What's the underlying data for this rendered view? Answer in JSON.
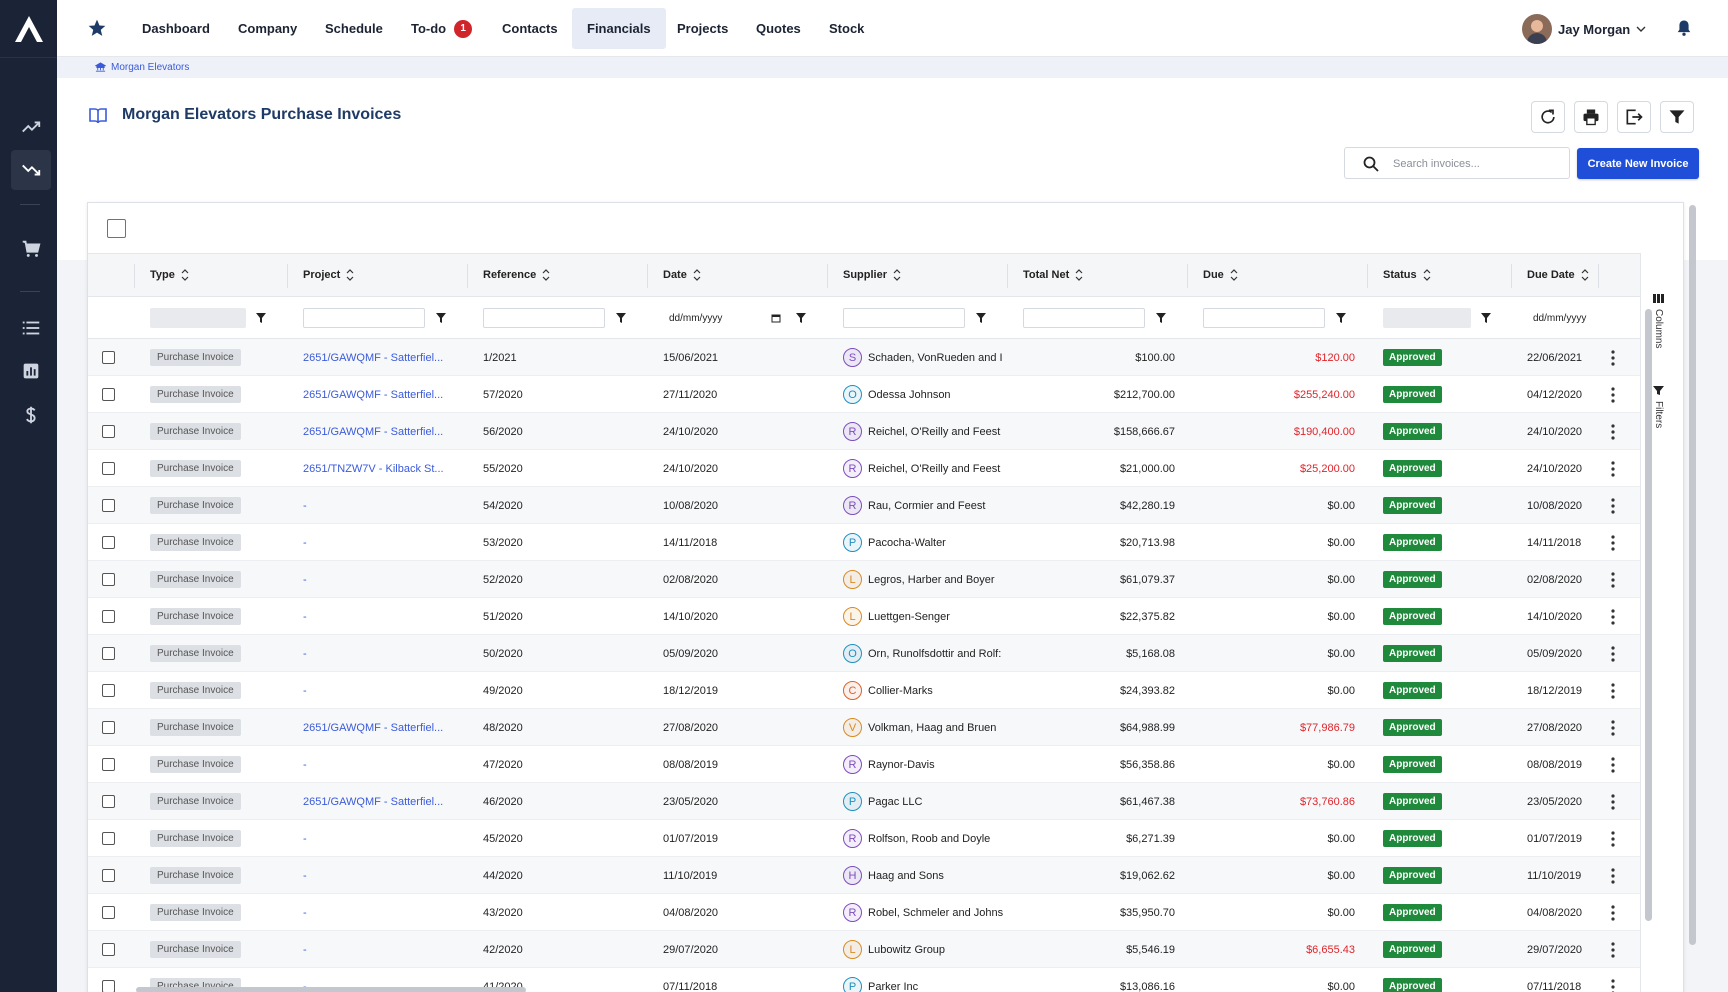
{
  "nav": {
    "items": [
      "Dashboard",
      "Company",
      "Schedule",
      "To-do",
      "Contacts",
      "Financials",
      "Projects",
      "Quotes",
      "Stock"
    ],
    "todo_badge": "1",
    "active": "Financials",
    "user_name": "Jay Morgan"
  },
  "breadcrumb": "Morgan Elevators",
  "page": {
    "title": "Morgan Elevators Purchase Invoices",
    "search_placeholder": "Search invoices...",
    "create_label": "Create New Invoice"
  },
  "columns": [
    "Type",
    "Project",
    "Reference",
    "Date",
    "Supplier",
    "Total Net",
    "Due",
    "Status",
    "Due Date"
  ],
  "filters": {
    "date_placeholder": "dd/mm/yyyy"
  },
  "side_tabs": {
    "columns": "Columns",
    "filters": "Filters"
  },
  "colors": {
    "accent": "#1f4fd8",
    "status_approved": "#1f8a3b",
    "due_red": "#e0242a",
    "sidebar": "#1b2437"
  },
  "rows": [
    {
      "type": "Purchase Invoice",
      "project": "2651/GAWQMF - Satterfiel...",
      "ref": "1/2021",
      "date": "15/06/2021",
      "sup_initial": "S",
      "sup_color": "#7c4dbd",
      "supplier": "Schaden, VonRueden and I",
      "net": "$100.00",
      "due": "$120.00",
      "due_red": true,
      "status": "Approved",
      "due_date": "22/06/2021"
    },
    {
      "type": "Purchase Invoice",
      "project": "2651/GAWQMF - Satterfiel...",
      "ref": "57/2020",
      "date": "27/11/2020",
      "sup_initial": "O",
      "sup_color": "#1f8fbf",
      "supplier": "Odessa Johnson",
      "net": "$212,700.00",
      "due": "$255,240.00",
      "due_red": true,
      "status": "Approved",
      "due_date": "04/12/2020"
    },
    {
      "type": "Purchase Invoice",
      "project": "2651/GAWQMF - Satterfiel...",
      "ref": "56/2020",
      "date": "24/10/2020",
      "sup_initial": "R",
      "sup_color": "#7c4dbd",
      "supplier": "Reichel, O'Reilly and Feest",
      "net": "$158,666.67",
      "due": "$190,400.00",
      "due_red": true,
      "status": "Approved",
      "due_date": "24/10/2020"
    },
    {
      "type": "Purchase Invoice",
      "project": "2651/TNZW7V - Kilback St...",
      "ref": "55/2020",
      "date": "24/10/2020",
      "sup_initial": "R",
      "sup_color": "#7c4dbd",
      "supplier": "Reichel, O'Reilly and Feest",
      "net": "$21,000.00",
      "due": "$25,200.00",
      "due_red": true,
      "status": "Approved",
      "due_date": "24/10/2020"
    },
    {
      "type": "Purchase Invoice",
      "project": "-",
      "ref": "54/2020",
      "date": "10/08/2020",
      "sup_initial": "R",
      "sup_color": "#7c4dbd",
      "supplier": "Rau, Cormier and Feest",
      "net": "$42,280.19",
      "due": "$0.00",
      "due_red": false,
      "status": "Approved",
      "due_date": "10/08/2020"
    },
    {
      "type": "Purchase Invoice",
      "project": "-",
      "ref": "53/2020",
      "date": "14/11/2018",
      "sup_initial": "P",
      "sup_color": "#1f8fbf",
      "supplier": "Pacocha-Walter",
      "net": "$20,713.98",
      "due": "$0.00",
      "due_red": false,
      "status": "Approved",
      "due_date": "14/11/2018"
    },
    {
      "type": "Purchase Invoice",
      "project": "-",
      "ref": "52/2020",
      "date": "02/08/2020",
      "sup_initial": "L",
      "sup_color": "#d98a1f",
      "supplier": "Legros, Harber and Boyer",
      "net": "$61,079.37",
      "due": "$0.00",
      "due_red": false,
      "status": "Approved",
      "due_date": "02/08/2020"
    },
    {
      "type": "Purchase Invoice",
      "project": "-",
      "ref": "51/2020",
      "date": "14/10/2020",
      "sup_initial": "L",
      "sup_color": "#d98a1f",
      "supplier": "Luettgen-Senger",
      "net": "$22,375.82",
      "due": "$0.00",
      "due_red": false,
      "status": "Approved",
      "due_date": "14/10/2020"
    },
    {
      "type": "Purchase Invoice",
      "project": "-",
      "ref": "50/2020",
      "date": "05/09/2020",
      "sup_initial": "O",
      "sup_color": "#1f8fbf",
      "supplier": "Orn, Runolfsdottir and Rolf:",
      "net": "$5,168.08",
      "due": "$0.00",
      "due_red": false,
      "status": "Approved",
      "due_date": "05/09/2020"
    },
    {
      "type": "Purchase Invoice",
      "project": "-",
      "ref": "49/2020",
      "date": "18/12/2019",
      "sup_initial": "C",
      "sup_color": "#d9622b",
      "supplier": "Collier-Marks",
      "net": "$24,393.82",
      "due": "$0.00",
      "due_red": false,
      "status": "Approved",
      "due_date": "18/12/2019"
    },
    {
      "type": "Purchase Invoice",
      "project": "2651/GAWQMF - Satterfiel...",
      "ref": "48/2020",
      "date": "27/08/2020",
      "sup_initial": "V",
      "sup_color": "#d98a1f",
      "supplier": "Volkman, Haag and Bruen",
      "net": "$64,988.99",
      "due": "$77,986.79",
      "due_red": true,
      "status": "Approved",
      "due_date": "27/08/2020"
    },
    {
      "type": "Purchase Invoice",
      "project": "-",
      "ref": "47/2020",
      "date": "08/08/2019",
      "sup_initial": "R",
      "sup_color": "#7c4dbd",
      "supplier": "Raynor-Davis",
      "net": "$56,358.86",
      "due": "$0.00",
      "due_red": false,
      "status": "Approved",
      "due_date": "08/08/2019"
    },
    {
      "type": "Purchase Invoice",
      "project": "2651/GAWQMF - Satterfiel...",
      "ref": "46/2020",
      "date": "23/05/2020",
      "sup_initial": "P",
      "sup_color": "#1f8fbf",
      "supplier": "Pagac LLC",
      "net": "$61,467.38",
      "due": "$73,760.86",
      "due_red": true,
      "status": "Approved",
      "due_date": "23/05/2020"
    },
    {
      "type": "Purchase Invoice",
      "project": "-",
      "ref": "45/2020",
      "date": "01/07/2019",
      "sup_initial": "R",
      "sup_color": "#7c4dbd",
      "supplier": "Rolfson, Roob and Doyle",
      "net": "$6,271.39",
      "due": "$0.00",
      "due_red": false,
      "status": "Approved",
      "due_date": "01/07/2019"
    },
    {
      "type": "Purchase Invoice",
      "project": "-",
      "ref": "44/2020",
      "date": "11/10/2019",
      "sup_initial": "H",
      "sup_color": "#7c4dbd",
      "supplier": "Haag and Sons",
      "net": "$19,062.62",
      "due": "$0.00",
      "due_red": false,
      "status": "Approved",
      "due_date": "11/10/2019"
    },
    {
      "type": "Purchase Invoice",
      "project": "-",
      "ref": "43/2020",
      "date": "04/08/2020",
      "sup_initial": "R",
      "sup_color": "#7c4dbd",
      "supplier": "Robel, Schmeler and Johns",
      "net": "$35,950.70",
      "due": "$0.00",
      "due_red": false,
      "status": "Approved",
      "due_date": "04/08/2020"
    },
    {
      "type": "Purchase Invoice",
      "project": "-",
      "ref": "42/2020",
      "date": "29/07/2020",
      "sup_initial": "L",
      "sup_color": "#d98a1f",
      "supplier": "Lubowitz Group",
      "net": "$5,546.19",
      "due": "$6,655.43",
      "due_red": true,
      "status": "Approved",
      "due_date": "29/07/2020"
    },
    {
      "type": "Purchase Invoice",
      "project": "-",
      "ref": "41/2020",
      "date": "07/11/2018",
      "sup_initial": "P",
      "sup_color": "#1f8fbf",
      "supplier": "Parker Inc",
      "net": "$13,086.16",
      "due": "$0.00",
      "due_red": false,
      "status": "Approved",
      "due_date": "07/11/2018"
    }
  ]
}
